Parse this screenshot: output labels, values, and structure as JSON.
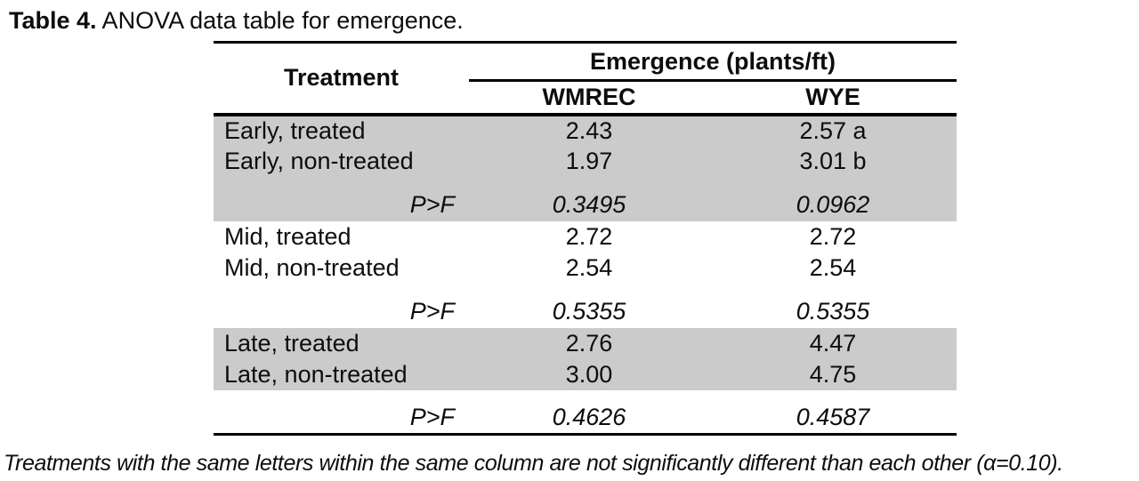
{
  "caption": {
    "label": "Table 4.",
    "text": " ANOVA data table for emergence."
  },
  "table": {
    "treatment_header": "Treatment",
    "span_header": "Emergence (plants/ft)",
    "columns": [
      "WMREC",
      "WYE"
    ],
    "groups": [
      {
        "shaded": true,
        "p_row_shaded": true,
        "rows": [
          {
            "treatment": "Early, treated",
            "wmrec": "2.43",
            "wye": "2.57 a"
          },
          {
            "treatment": "Early, non-treated",
            "wmrec": "1.97",
            "wye": "3.01 b"
          }
        ],
        "p": {
          "label": "P>F",
          "wmrec": "0.3495",
          "wye": "0.0962"
        }
      },
      {
        "shaded": false,
        "p_row_shaded": false,
        "rows": [
          {
            "treatment": "Mid, treated",
            "wmrec": "2.72",
            "wye": "2.72"
          },
          {
            "treatment": "Mid, non-treated",
            "wmrec": "2.54",
            "wye": "2.54"
          }
        ],
        "p": {
          "label": "P>F",
          "wmrec": "0.5355",
          "wye": "0.5355"
        }
      },
      {
        "shaded": true,
        "p_row_shaded": false,
        "rows": [
          {
            "treatment": "Late, treated",
            "wmrec": "2.76",
            "wye": "4.47"
          },
          {
            "treatment": "Late, non-treated",
            "wmrec": "3.00",
            "wye": "4.75"
          }
        ],
        "p": {
          "label": "P>F",
          "wmrec": "0.4626",
          "wye": "0.4587"
        }
      }
    ]
  },
  "footnote": "Treatments with the same letters within the same column are not significantly different than each other (α=0.10).",
  "colors": {
    "shading": "#cbcbcb",
    "text": "#0d0d0d",
    "rule": "#000000"
  },
  "chart_data": {
    "type": "table",
    "title": "Table 4. ANOVA data table for emergence.",
    "value_unit": "plants/ft",
    "columns": [
      "Treatment",
      "WMREC",
      "WYE"
    ],
    "rows": [
      [
        "Early, treated",
        2.43,
        "2.57 a"
      ],
      [
        "Early, non-treated",
        1.97,
        "3.01 b"
      ],
      [
        "P>F",
        0.3495,
        0.0962
      ],
      [
        "Mid, treated",
        2.72,
        2.72
      ],
      [
        "Mid, non-treated",
        2.54,
        2.54
      ],
      [
        "P>F",
        0.5355,
        0.5355
      ],
      [
        "Late, treated",
        2.76,
        4.47
      ],
      [
        "Late, non-treated",
        3.0,
        4.75
      ],
      [
        "P>F",
        0.4626,
        0.4587
      ]
    ]
  }
}
